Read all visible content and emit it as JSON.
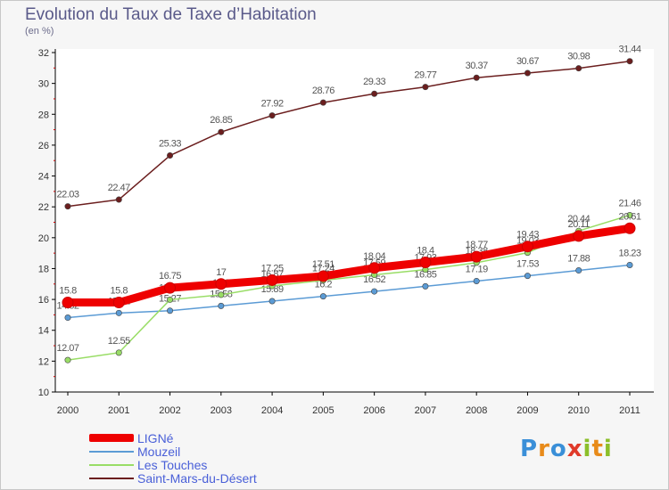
{
  "title": "Evolution du Taux de Taxe d’Habitation",
  "unit": "(en %)",
  "logo": {
    "letters": [
      "P",
      "r",
      "o",
      "x",
      "i",
      "t",
      "i"
    ],
    "colors": [
      "#3a8fd8",
      "#e88b1a",
      "#3a8fd8",
      "#e03a2a",
      "#8cbf2a",
      "#e88b1a",
      "#8cbf2a"
    ]
  },
  "chart_data": {
    "type": "line",
    "x": [
      "2000",
      "2001",
      "2002",
      "2003",
      "2004",
      "2005",
      "2006",
      "2007",
      "2008",
      "2009",
      "2010",
      "2011"
    ],
    "ylim": [
      10,
      32
    ],
    "yticks": [
      10,
      12,
      14,
      16,
      18,
      20,
      22,
      24,
      26,
      28,
      30,
      32
    ],
    "grid": false,
    "series": [
      {
        "name": "LIGNé",
        "color": "#ee0000",
        "values": [
          15.8,
          15.8,
          16.75,
          17,
          17.25,
          17.51,
          18.04,
          18.4,
          18.77,
          19.43,
          20.11,
          20.61
        ],
        "labels": [
          "15.8",
          "15.8",
          "16.75",
          "17",
          "17.25",
          "17.51",
          "18.04",
          "18.4",
          "18.77",
          "19.43",
          "20.11",
          "20.61"
        ]
      },
      {
        "name": "Mouzeil",
        "color": "#5b9bd5",
        "values": [
          14.82,
          15.12,
          15.27,
          15.58,
          15.89,
          16.2,
          16.52,
          16.85,
          17.19,
          17.53,
          17.88,
          18.23
        ],
        "labels": [
          "14.82",
          "15.12",
          "15.27",
          "15.58",
          "15.89",
          "16.2",
          "16.52",
          "16.85",
          "17.19",
          "17.53",
          "17.88",
          "18.23"
        ]
      },
      {
        "name": "Les Touches",
        "color": "#99dd66",
        "values": [
          12.07,
          12.55,
          15.98,
          16.3,
          16.87,
          17.24,
          17.59,
          17.93,
          18.38,
          19.03,
          20.44,
          21.46
        ],
        "labels": [
          "12.07",
          "12.55",
          "15.98",
          "16.3",
          "16.87",
          "17.24",
          "17.59",
          "17.93",
          "18.38",
          "19.03",
          "20.44",
          "21.46"
        ]
      },
      {
        "name": "Saint-Mars-du-Désert",
        "color": "#6b1e1e",
        "values": [
          22.03,
          22.47,
          25.33,
          26.85,
          27.92,
          28.76,
          29.33,
          29.77,
          30.37,
          30.67,
          30.98,
          31.44
        ],
        "labels": [
          "22.03",
          "22.47",
          "25.33",
          "26.85",
          "27.92",
          "28.76",
          "29.33",
          "29.77",
          "30.37",
          "30.67",
          "30.98",
          "31.44"
        ]
      }
    ]
  }
}
